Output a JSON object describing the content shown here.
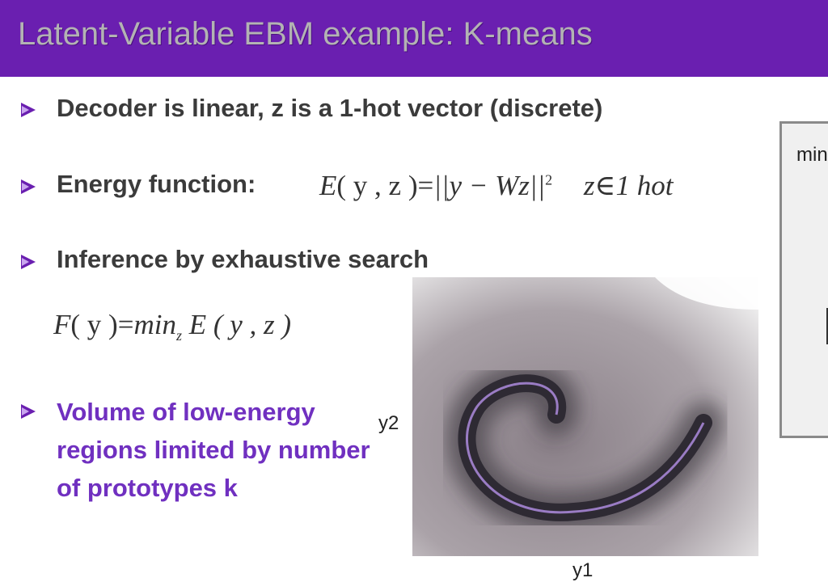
{
  "title": "Latent-Variable EBM example: K-means",
  "bullets": [
    "Decoder is linear, z is a 1-hot vector (discrete)",
    "Energy function:",
    "Inference by exhaustive search",
    "Volume of low-energy regions limited by number of prototypes k"
  ],
  "energy_eq": {
    "lhs": "E",
    "args": "( y , z )",
    "eq": "=",
    "norm": "||y − Wz||",
    "exp": "2",
    "constraint": "z∈1 hot"
  },
  "free_eq": {
    "lhs": "F",
    "args": "( y )",
    "eq": "=",
    "min": "min",
    "sub": "z",
    "rhs": "E ( y , z )"
  },
  "plot": {
    "xlabel": "y1",
    "ylabel": "y2"
  },
  "side_panel": {
    "text": "min"
  },
  "colors": {
    "title_bg": "#6a1fb0",
    "accent": "#7030c0"
  }
}
